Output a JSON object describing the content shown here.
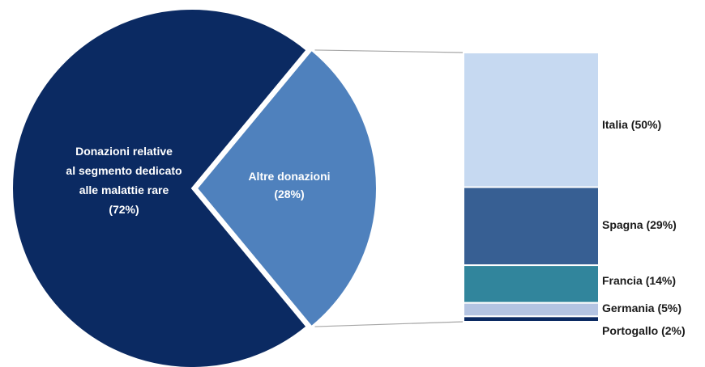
{
  "chart_data": {
    "type": "bar-of-pie",
    "pie": {
      "slices": [
        {
          "label": "Donazioni relative al segmento dedicato alle malattie rare",
          "lines": [
            "Donazioni relative",
            "al segmento dedicato",
            "alle malattie rare",
            "(72%)"
          ],
          "value": 72,
          "color": "#0B2A62"
        },
        {
          "label": "Altre donazioni",
          "lines": [
            "Altre donazioni",
            "(28%)"
          ],
          "value": 28,
          "color": "#4F81BD"
        }
      ]
    },
    "bar": {
      "breakdown_of": "Altre donazioni",
      "segments": [
        {
          "label": "Italia (50%)",
          "value": 50,
          "color": "#C6D9F1"
        },
        {
          "label": "Spagna (29%)",
          "value": 29,
          "color": "#375F93"
        },
        {
          "label": "Francia (14%)",
          "value": 14,
          "color": "#31859C"
        },
        {
          "label": "Germania (5%)",
          "value": 5,
          "color": "#B4C4E2"
        },
        {
          "label": "Portogallo (2%)",
          "value": 2,
          "color": "#0B2A62"
        }
      ]
    }
  }
}
